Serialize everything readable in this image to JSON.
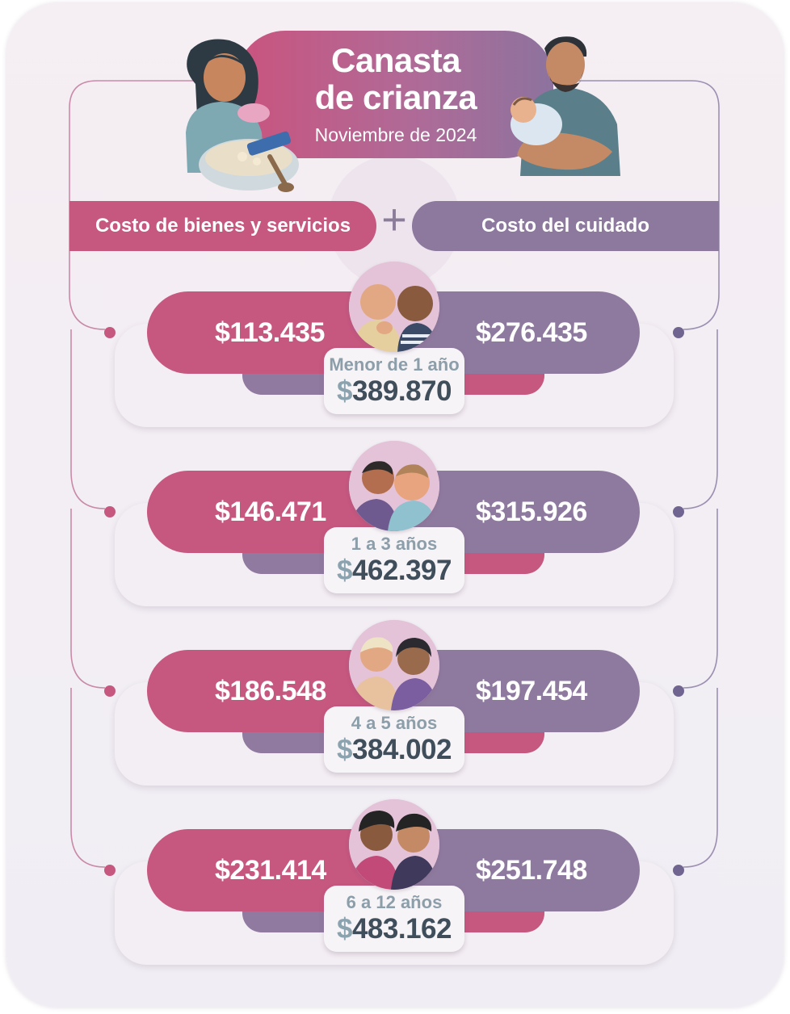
{
  "header": {
    "title": "Canasta\nde crianza",
    "subtitle": "Noviembre de 2024",
    "left_label": "Costo de bienes y servicios",
    "right_label": "Costo del cuidado",
    "operator": "+"
  },
  "colors": {
    "goods": "#c6577f",
    "care": "#8f7a9f",
    "total_text": "#3f4e5a",
    "age_text": "#8b9ea9"
  },
  "rows": [
    {
      "age": "Menor de 1 año",
      "goods": "$113.435",
      "care": "$276.435",
      "currency": "$",
      "total": "389.870"
    },
    {
      "age": "1 a 3 años",
      "goods": "$146.471",
      "care": "$315.926",
      "currency": "$",
      "total": "462.397"
    },
    {
      "age": "4 a 5 años",
      "goods": "$186.548",
      "care": "$197.454",
      "currency": "$",
      "total": "384.002"
    },
    {
      "age": "6 a 12 años",
      "goods": "$231.414",
      "care": "$251.748",
      "currency": "$",
      "total": "483.162"
    }
  ]
}
